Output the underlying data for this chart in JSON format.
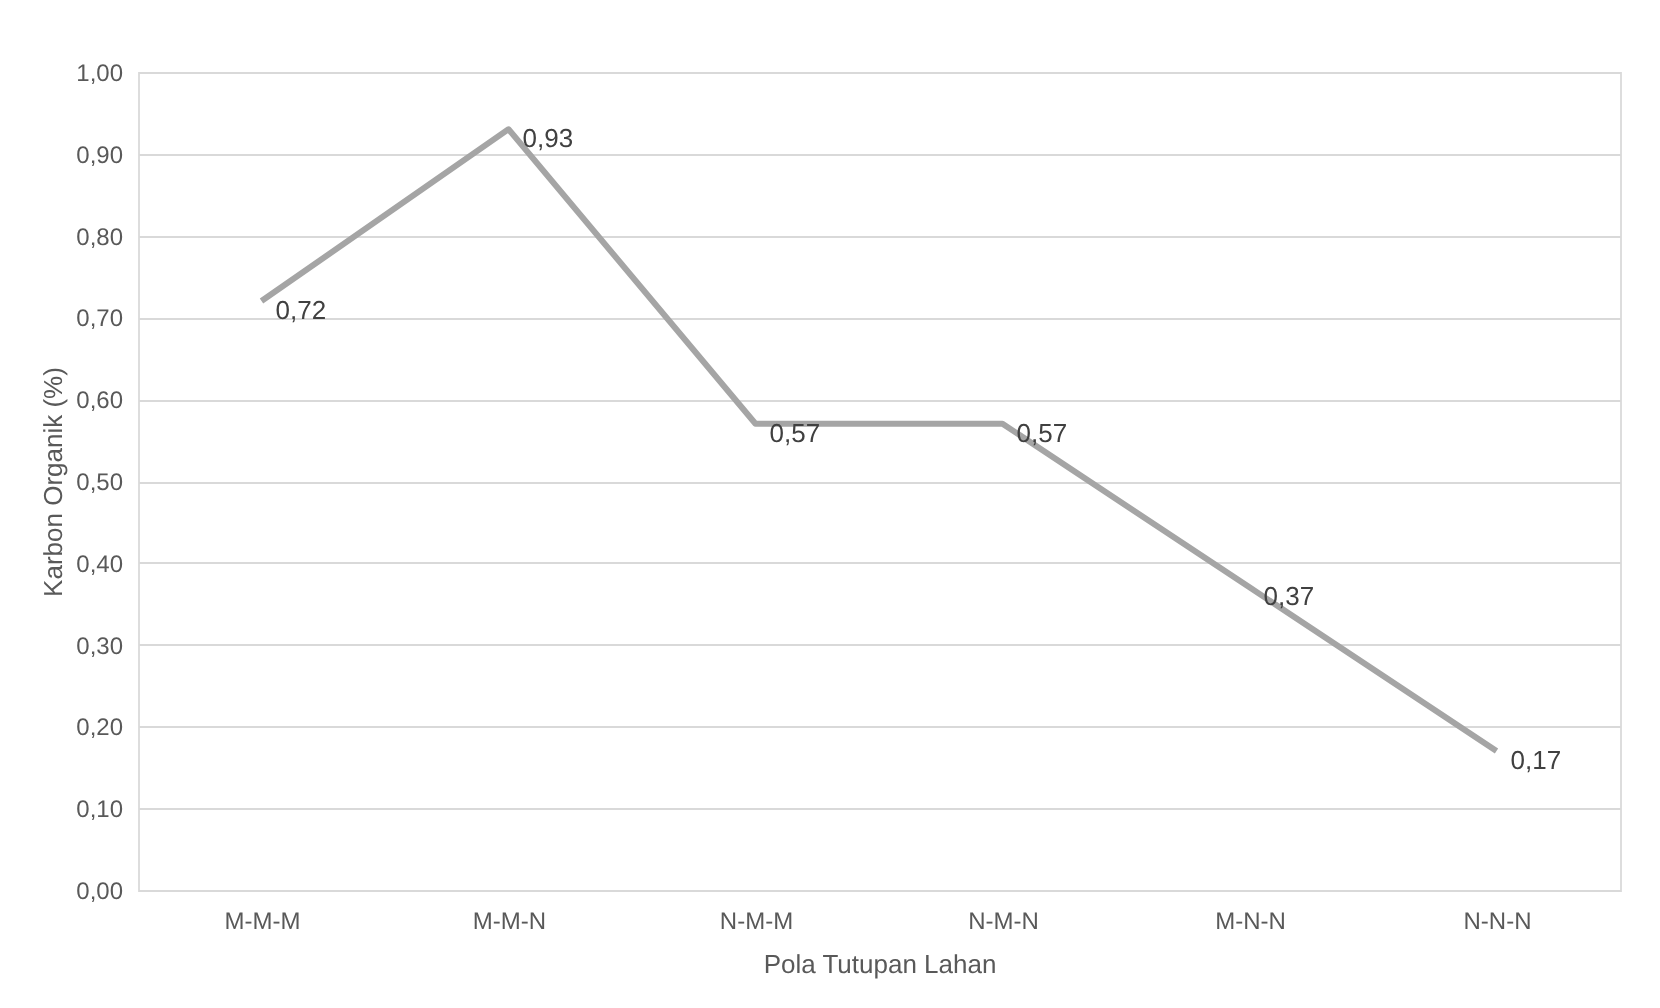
{
  "chart_data": {
    "type": "line",
    "xlabel": "Pola Tutupan Lahan",
    "ylabel": "Karbon Organik (%)",
    "categories": [
      "M-M-M",
      "M-M-N",
      "N-M-M",
      "N-M-N",
      "M-N-N",
      "N-N-N"
    ],
    "series": [
      {
        "color": "#a5a5a5",
        "values": [
          0.72,
          0.93,
          0.57,
          0.57,
          0.37,
          0.17
        ],
        "value_labels": [
          "0,72",
          "0,93",
          "0,57",
          "0,57",
          "0,37",
          "0,17"
        ]
      }
    ],
    "ylim": [
      0,
      1
    ],
    "yticks": [
      {
        "value": 0,
        "label": "0,00"
      },
      {
        "value": 0.1,
        "label": "0,10"
      },
      {
        "value": 0.2,
        "label": "0,20"
      },
      {
        "value": 0.3,
        "label": "0,30"
      },
      {
        "value": 0.4,
        "label": "0,40"
      },
      {
        "value": 0.5,
        "label": "0,50"
      },
      {
        "value": 0.6,
        "label": "0,60"
      },
      {
        "value": 0.7,
        "label": "0,70"
      },
      {
        "value": 0.8,
        "label": "0,80"
      },
      {
        "value": 0.9,
        "label": "0,90"
      },
      {
        "value": 1,
        "label": "1,00"
      }
    ],
    "grid": "y",
    "marker": "none",
    "line_style": "solid"
  }
}
